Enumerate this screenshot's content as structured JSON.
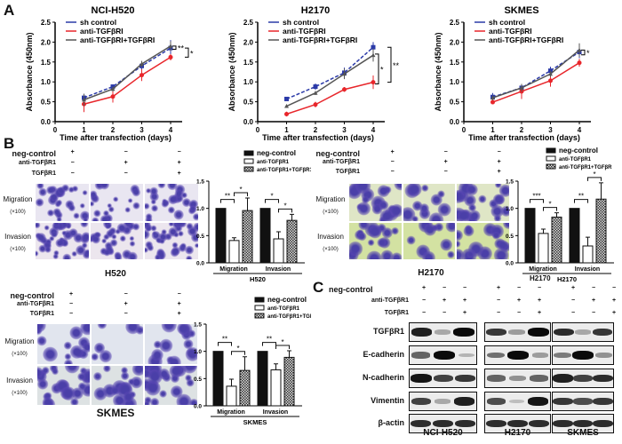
{
  "panel_labels": {
    "a": "A",
    "b": "B",
    "c": "C"
  },
  "chart_data": [
    {
      "type": "line",
      "title": "NCI-H520",
      "xlabel": "Time after transfection (days)",
      "ylabel": "Absorbance (450nm)",
      "x": [
        1,
        2,
        3,
        4
      ],
      "xticks": [
        "0",
        "1",
        "2",
        "3",
        "4"
      ],
      "yticks": [
        "0.0",
        "0.5",
        "1.0",
        "1.5",
        "2.0",
        "2.5"
      ],
      "ylim": [
        0,
        2.5
      ],
      "xlim": [
        0,
        4.4
      ],
      "series": [
        {
          "name": "sh control",
          "color": "#2b3aa8",
          "values": [
            0.6,
            0.88,
            1.4,
            1.85
          ],
          "err": [
            0.1,
            0.05,
            0.12,
            0.2
          ]
        },
        {
          "name": "anti-TGFβRI",
          "color": "#e8262b",
          "values": [
            0.44,
            0.63,
            1.17,
            1.62
          ],
          "err": [
            0.2,
            0.15,
            0.15,
            0.08
          ]
        },
        {
          "name": "anti-TGFβRI+TGFβRI",
          "color": "#555555",
          "values": [
            0.55,
            0.82,
            1.45,
            1.9
          ],
          "err": [
            0.15,
            0.06,
            0.08,
            0.12
          ]
        }
      ],
      "significance": [
        "**",
        "*"
      ]
    },
    {
      "type": "line",
      "title": "H2170",
      "xlabel": "Time after transfection (days)",
      "ylabel": "Absorbance (450nm)",
      "x": [
        1,
        2,
        3,
        4
      ],
      "xticks": [
        "0",
        "1",
        "2",
        "3",
        "4"
      ],
      "yticks": [
        "0.0",
        "0.5",
        "1.0",
        "1.5",
        "2.0",
        "2.5"
      ],
      "ylim": [
        0,
        2.5
      ],
      "xlim": [
        0,
        4.4
      ],
      "series": [
        {
          "name": "sh control",
          "color": "#2b3aa8",
          "values": [
            0.57,
            0.88,
            1.23,
            1.87
          ],
          "err": [
            0.03,
            0.08,
            0.13,
            0.13
          ]
        },
        {
          "name": "anti-TGFβRI",
          "color": "#e8262b",
          "values": [
            0.19,
            0.43,
            0.81,
            0.99
          ],
          "err": [
            0.06,
            0.07,
            0.06,
            0.17
          ]
        },
        {
          "name": "anti-TGFβRI+TGFβRI",
          "color": "#555555",
          "values": [
            0.39,
            0.72,
            1.2,
            1.67
          ],
          "err": [
            0.04,
            0.05,
            0.13,
            0.16
          ]
        }
      ],
      "significance": [
        "*",
        "**"
      ]
    },
    {
      "type": "line",
      "title": "SKMES",
      "xlabel": "Time after transfection (days)",
      "ylabel": "Absorbance (450nm)",
      "x": [
        1,
        2,
        3,
        4
      ],
      "xticks": [
        "0",
        "1",
        "2",
        "3",
        "4"
      ],
      "yticks": [
        "0.0",
        "0.5",
        "1.0",
        "1.5",
        "2.0",
        "2.5"
      ],
      "ylim": [
        0,
        2.5
      ],
      "xlim": [
        0,
        4.4
      ],
      "series": [
        {
          "name": "sh control",
          "color": "#2b3aa8",
          "values": [
            0.62,
            0.85,
            1.28,
            1.75
          ],
          "err": [
            0.1,
            0.08,
            0.1,
            0.15
          ]
        },
        {
          "name": "anti-TGFβRI",
          "color": "#e8262b",
          "values": [
            0.49,
            0.76,
            1.03,
            1.48
          ],
          "err": [
            0.05,
            0.19,
            0.15,
            0.1
          ]
        },
        {
          "name": "anti-TGFβRI+TGFβRI",
          "color": "#555555",
          "values": [
            0.6,
            0.85,
            1.2,
            1.8
          ],
          "err": [
            0.06,
            0.1,
            0.08,
            0.17
          ]
        }
      ],
      "significance": [
        "*"
      ]
    },
    {
      "type": "bar",
      "title": "H520",
      "categories": [
        "Migration",
        "Invasion"
      ],
      "yticks": [
        "0.0",
        "0.5",
        "1.0",
        "1.5"
      ],
      "ylim": [
        0,
        1.5
      ],
      "legend": [
        "neg-control",
        "anti-TGFβR1",
        "anti-TGFβR1+TGFβR1"
      ],
      "series": [
        {
          "name": "neg-control",
          "values": [
            1.0,
            1.0
          ],
          "err": [
            0,
            0
          ]
        },
        {
          "name": "anti-TGFβR1",
          "values": [
            0.41,
            0.44
          ],
          "err": [
            0.05,
            0.13
          ]
        },
        {
          "name": "anti-TGFβR1+TGFβR1",
          "values": [
            0.96,
            0.78
          ],
          "err": [
            0.23,
            0.11
          ]
        }
      ],
      "significance": [
        [
          "**",
          "*"
        ],
        [
          "*",
          "*"
        ]
      ]
    },
    {
      "type": "bar",
      "title": "H2170",
      "categories": [
        "Migration",
        "Invasion"
      ],
      "yticks": [
        "0.0",
        "0.5",
        "1.0",
        "1.5"
      ],
      "ylim": [
        0,
        1.5
      ],
      "legend": [
        "neg-control",
        "anti-TGFβR1",
        "anti-TGFβR1+TGFβR"
      ],
      "series": [
        {
          "name": "neg-control",
          "values": [
            1.0,
            1.0
          ],
          "err": [
            0,
            0
          ]
        },
        {
          "name": "anti-TGFβR1",
          "values": [
            0.54,
            0.31
          ],
          "err": [
            0.08,
            0.16
          ]
        },
        {
          "name": "anti-TGFβR1+TGFβR1",
          "values": [
            0.84,
            1.17
          ],
          "err": [
            0.08,
            0.3
          ]
        }
      ],
      "significance": [
        [
          "***",
          "*"
        ],
        [
          "**",
          "*"
        ]
      ]
    },
    {
      "type": "bar",
      "title": "SKMES",
      "categories": [
        "Migration",
        "Invasion"
      ],
      "yticks": [
        "0.0",
        "0.5",
        "1.0",
        "1.5"
      ],
      "ylim": [
        0,
        1.5
      ],
      "legend": [
        "neg-control",
        "anti-TGFβR1",
        "anti-TGFβR1+TGFβR1"
      ],
      "series": [
        {
          "name": "neg-control",
          "values": [
            1.0,
            1.0
          ],
          "err": [
            0,
            0
          ]
        },
        {
          "name": "anti-TGFβR1",
          "values": [
            0.36,
            0.66
          ],
          "err": [
            0.13,
            0.11
          ]
        },
        {
          "name": "anti-TGFβR1+TGFβR1",
          "values": [
            0.65,
            0.89
          ],
          "err": [
            0.25,
            0.12
          ]
        }
      ],
      "significance": [
        [
          "**",
          "*"
        ],
        [
          "**",
          "*"
        ]
      ]
    }
  ],
  "conditions": {
    "labels": [
      "neg-control",
      "anti-TGFβR1",
      "TGFβR1"
    ],
    "matrix": [
      [
        "+",
        "−",
        "−"
      ],
      [
        "−",
        "+",
        "+"
      ],
      [
        "−",
        "−",
        "+"
      ]
    ]
  },
  "transwell": {
    "row_labels": [
      "Migration",
      "Invasion"
    ],
    "magnification": "(×100)",
    "cell_lines": [
      "H520",
      "H2170",
      "SKMES"
    ]
  },
  "western": {
    "proteins": [
      "TGFβR1",
      "E-cadherin",
      "N-cadherin",
      "Vimentin",
      "β-actin"
    ],
    "cell_lines": [
      "NCI-H520",
      "H2170",
      "SKMES"
    ],
    "intensity": [
      [
        [
          0.9,
          0.3,
          1.0
        ],
        [
          0.8,
          0.35,
          1.0
        ],
        [
          0.85,
          0.3,
          0.8
        ]
      ],
      [
        [
          0.6,
          1.0,
          0.25
        ],
        [
          0.55,
          1.0,
          0.35
        ],
        [
          0.5,
          1.0,
          0.4
        ]
      ],
      [
        [
          0.95,
          0.75,
          0.8
        ],
        [
          0.6,
          0.4,
          0.6
        ],
        [
          0.9,
          0.75,
          0.85
        ]
      ],
      [
        [
          0.75,
          0.3,
          0.9
        ],
        [
          0.7,
          0.2,
          0.95
        ],
        [
          0.8,
          0.7,
          0.8
        ]
      ],
      [
        [
          0.85,
          0.85,
          0.85
        ],
        [
          0.85,
          0.85,
          0.85
        ],
        [
          0.85,
          0.85,
          0.85
        ]
      ]
    ],
    "stray_label": "H2170"
  }
}
